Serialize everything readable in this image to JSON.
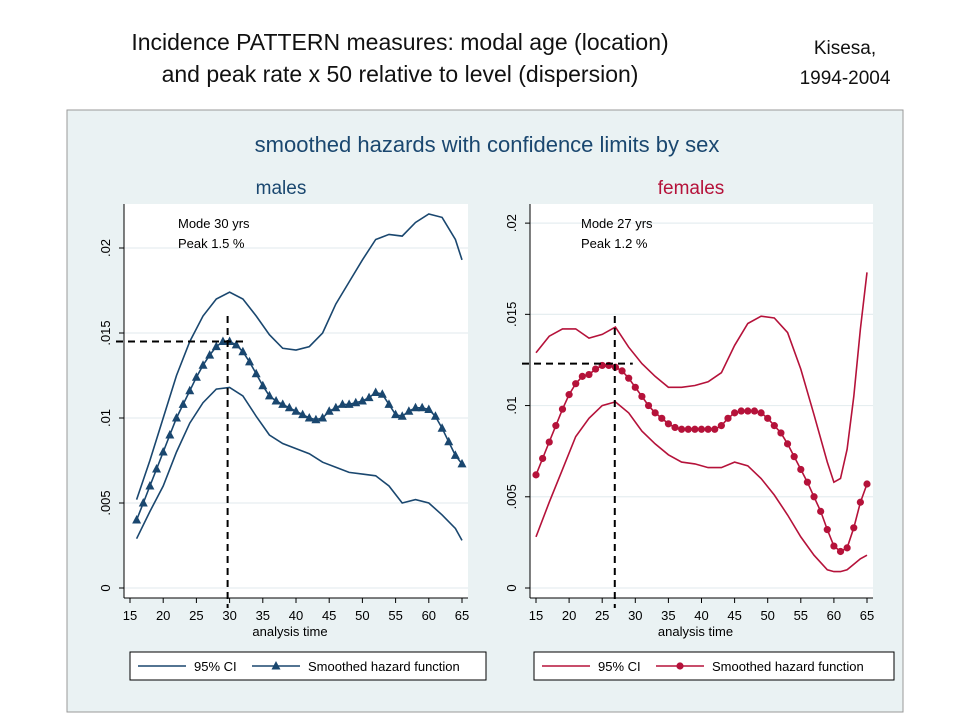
{
  "header": {
    "title": "Incidence PATTERN measures: modal age (location)\nand peak rate x 50 relative to level (dispersion)",
    "subtitle": "Kisesa,\n1994-2004"
  },
  "chart_data": {
    "type": "line",
    "title": "smoothed hazards with confidence limits by sex",
    "colors": {
      "males": "#1a476f",
      "females": "#b5123a",
      "band": "#eaf2f3"
    },
    "panels": [
      {
        "name": "males",
        "xlabel": "analysis time",
        "xlim": [
          15,
          65
        ],
        "ylim": [
          0,
          0.022
        ],
        "xticks": [
          15,
          20,
          25,
          30,
          35,
          40,
          45,
          50,
          55,
          60,
          65
        ],
        "yticks": [
          0,
          0.005,
          0.01,
          0.015,
          0.02
        ],
        "ytick_labels": [
          "0",
          ".005",
          ".01",
          ".015",
          ".02"
        ],
        "annotation": [
          "Mode 30 yrs",
          "Peak 1.5 %"
        ],
        "mode_x": 29.7,
        "peak_y": 0.0145,
        "legend": [
          "95% CI",
          "Smoothed hazard function"
        ],
        "series": [
          {
            "name": "Smoothed hazard function",
            "x": [
              16,
              17,
              18,
              19,
              20,
              21,
              22,
              23,
              24,
              25,
              26,
              27,
              28,
              29,
              30,
              31,
              32,
              33,
              34,
              35,
              36,
              37,
              38,
              39,
              40,
              41,
              42,
              43,
              44,
              45,
              46,
              47,
              48,
              49,
              50,
              51,
              52,
              53,
              54,
              55,
              56,
              57,
              58,
              59,
              60,
              61,
              62,
              63,
              64,
              65
            ],
            "y": [
              0.004,
              0.005,
              0.006,
              0.007,
              0.008,
              0.009,
              0.01,
              0.0108,
              0.0116,
              0.0124,
              0.0131,
              0.0137,
              0.0142,
              0.0145,
              0.0145,
              0.0143,
              0.0139,
              0.0133,
              0.0126,
              0.0119,
              0.0113,
              0.011,
              0.0108,
              0.0106,
              0.0104,
              0.0102,
              0.01,
              0.0099,
              0.01,
              0.0104,
              0.0106,
              0.0108,
              0.0108,
              0.0109,
              0.011,
              0.0112,
              0.0115,
              0.0114,
              0.0108,
              0.0102,
              0.0101,
              0.0104,
              0.0106,
              0.0106,
              0.0105,
              0.0101,
              0.0094,
              0.0086,
              0.0078,
              0.0073
            ]
          },
          {
            "name": "95% CI upper",
            "x": [
              16,
              18,
              20,
              22,
              24,
              26,
              28,
              30,
              32,
              34,
              36,
              38,
              40,
              42,
              44,
              46,
              48,
              50,
              52,
              54,
              56,
              58,
              60,
              62,
              64,
              65
            ],
            "y": [
              0.0052,
              0.0075,
              0.01,
              0.0125,
              0.0145,
              0.016,
              0.017,
              0.0174,
              0.017,
              0.016,
              0.0149,
              0.0141,
              0.014,
              0.0142,
              0.015,
              0.0167,
              0.018,
              0.0193,
              0.0205,
              0.0208,
              0.0207,
              0.0215,
              0.022,
              0.0218,
              0.0205,
              0.0193
            ]
          },
          {
            "name": "95% CI lower",
            "x": [
              16,
              18,
              20,
              22,
              24,
              26,
              28,
              30,
              32,
              34,
              36,
              38,
              40,
              42,
              44,
              46,
              48,
              50,
              52,
              54,
              56,
              58,
              60,
              62,
              64,
              65
            ],
            "y": [
              0.0029,
              0.0045,
              0.006,
              0.008,
              0.0097,
              0.0109,
              0.0117,
              0.0118,
              0.0113,
              0.0101,
              0.009,
              0.0085,
              0.0082,
              0.0079,
              0.0074,
              0.0071,
              0.0068,
              0.0067,
              0.0066,
              0.006,
              0.005,
              0.0052,
              0.005,
              0.0043,
              0.0035,
              0.0028
            ]
          }
        ]
      },
      {
        "name": "females",
        "xlabel": "analysis time",
        "xlim": [
          15,
          65
        ],
        "ylim": [
          0,
          0.0205
        ],
        "xticks": [
          15,
          20,
          25,
          30,
          35,
          40,
          45,
          50,
          55,
          60,
          65
        ],
        "yticks": [
          0,
          0.005,
          0.01,
          0.015,
          0.02
        ],
        "ytick_labels": [
          "0",
          ".005",
          ".01",
          ".015",
          ".02"
        ],
        "annotation": [
          "Mode 27 yrs",
          "Peak 1.2 %"
        ],
        "mode_x": 26.9,
        "peak_y": 0.0123,
        "legend": [
          "95% CI",
          "Smoothed hazard function"
        ],
        "series": [
          {
            "name": "Smoothed hazard function",
            "x": [
              15,
              16,
              17,
              18,
              19,
              20,
              21,
              22,
              23,
              24,
              25,
              26,
              27,
              28,
              29,
              30,
              31,
              32,
              33,
              34,
              35,
              36,
              37,
              38,
              39,
              40,
              41,
              42,
              43,
              44,
              45,
              46,
              47,
              48,
              49,
              50,
              51,
              52,
              53,
              54,
              55,
              56,
              57,
              58,
              59,
              60,
              61,
              62,
              63,
              64,
              65
            ],
            "y": [
              0.0062,
              0.0071,
              0.008,
              0.0089,
              0.0098,
              0.0106,
              0.0112,
              0.0116,
              0.0117,
              0.012,
              0.0122,
              0.0122,
              0.0121,
              0.0119,
              0.0115,
              0.011,
              0.0105,
              0.01,
              0.0096,
              0.0093,
              0.009,
              0.0088,
              0.0087,
              0.0087,
              0.0087,
              0.0087,
              0.0087,
              0.0087,
              0.0089,
              0.0093,
              0.0096,
              0.0097,
              0.0097,
              0.0097,
              0.0096,
              0.0093,
              0.0089,
              0.0085,
              0.0079,
              0.0072,
              0.0065,
              0.0058,
              0.005,
              0.0042,
              0.0032,
              0.0023,
              0.002,
              0.0022,
              0.0033,
              0.0047,
              0.0057
            ]
          },
          {
            "name": "95% CI upper",
            "x": [
              15,
              17,
              19,
              21,
              23,
              25,
              27,
              29,
              31,
              33,
              35,
              37,
              39,
              41,
              43,
              45,
              47,
              49,
              51,
              53,
              55,
              57,
              59,
              60,
              61,
              62,
              63,
              64,
              65
            ],
            "y": [
              0.0129,
              0.0138,
              0.0142,
              0.0142,
              0.0137,
              0.0139,
              0.0143,
              0.0132,
              0.0123,
              0.0116,
              0.011,
              0.011,
              0.0111,
              0.0113,
              0.0118,
              0.0133,
              0.0145,
              0.0149,
              0.0148,
              0.014,
              0.012,
              0.0095,
              0.0069,
              0.0058,
              0.006,
              0.0076,
              0.0105,
              0.0142,
              0.0173
            ]
          },
          {
            "name": "95% CI lower",
            "x": [
              15,
              17,
              19,
              21,
              23,
              25,
              27,
              29,
              31,
              33,
              35,
              37,
              39,
              41,
              43,
              45,
              47,
              49,
              51,
              53,
              55,
              57,
              59,
              60,
              61,
              62,
              63,
              64,
              65
            ],
            "y": [
              0.0028,
              0.0047,
              0.0065,
              0.0083,
              0.0093,
              0.01,
              0.0102,
              0.0096,
              0.0086,
              0.0079,
              0.0073,
              0.0069,
              0.0068,
              0.0066,
              0.0066,
              0.0069,
              0.0067,
              0.006,
              0.0051,
              0.004,
              0.0028,
              0.0018,
              0.001,
              0.0009,
              0.0009,
              0.001,
              0.0013,
              0.0016,
              0.0018
            ]
          }
        ]
      }
    ]
  }
}
